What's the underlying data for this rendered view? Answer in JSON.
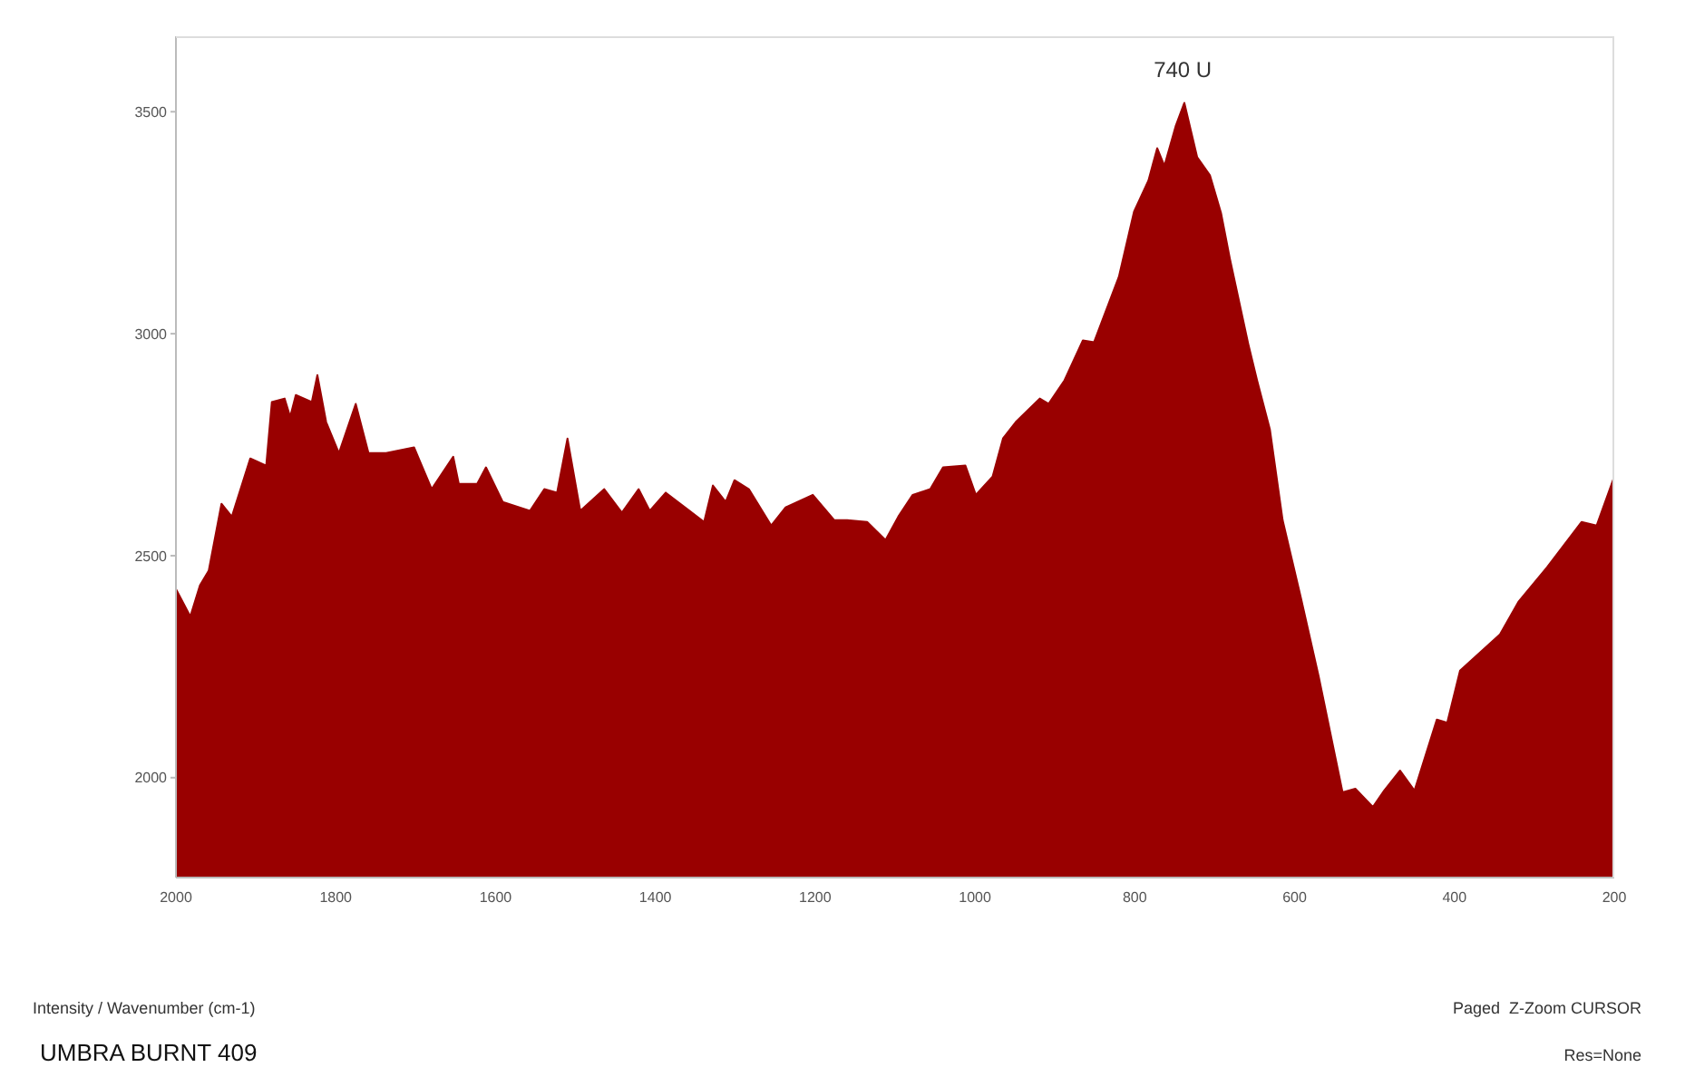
{
  "chart_data": {
    "type": "area",
    "title": "UMBRA BURNT 409",
    "annotations": [
      {
        "text": "740 U",
        "x": 740,
        "y": 3520
      },
      "Intensity / Wavenumber (cm-1)",
      "Paged  Z-Zoom CURSOR",
      "Res=None"
    ],
    "xlim": [
      2000,
      200
    ],
    "xticks": [
      2000,
      1800,
      1600,
      1400,
      1200,
      1000,
      800,
      600,
      400,
      200
    ],
    "ylim": [
      1775,
      3670
    ],
    "yticks": [
      2000,
      2500,
      3000,
      3500
    ],
    "grid": false,
    "legend": false,
    "series": [
      {
        "color": "#990000",
        "x": [
          2000,
          1982,
          1970,
          1959,
          1943,
          1930,
          1907,
          1887,
          1880,
          1864,
          1857,
          1850,
          1830,
          1823,
          1812,
          1796,
          1775,
          1759,
          1737,
          1702,
          1680,
          1653,
          1646,
          1623,
          1612,
          1591,
          1557,
          1539,
          1523,
          1510,
          1494,
          1464,
          1442,
          1421,
          1407,
          1387,
          1339,
          1328,
          1312,
          1301,
          1283,
          1255,
          1237,
          1203,
          1176,
          1160,
          1135,
          1112,
          1096,
          1078,
          1056,
          1040,
          1012,
          999,
          978,
          965,
          949,
          919,
          908,
          888,
          865,
          851,
          820,
          801,
          783,
          772,
          763,
          749,
          738,
          722,
          706,
          692,
          681,
          658,
          647,
          631,
          615,
          592,
          570,
          540,
          524,
          502,
          488,
          468,
          450,
          422,
          409,
          393,
          343,
          320,
          284,
          241,
          222,
          200
        ],
        "values": [
          2425,
          2363,
          2433,
          2466,
          2617,
          2588,
          2719,
          2703,
          2846,
          2854,
          2813,
          2862,
          2846,
          2907,
          2801,
          2731,
          2842,
          2731,
          2731,
          2744,
          2650,
          2723,
          2662,
          2662,
          2699,
          2621,
          2601,
          2650,
          2642,
          2764,
          2601,
          2650,
          2597,
          2650,
          2601,
          2642,
          2576,
          2658,
          2621,
          2670,
          2650,
          2568,
          2609,
          2637,
          2580,
          2580,
          2576,
          2535,
          2588,
          2637,
          2650,
          2699,
          2703,
          2637,
          2678,
          2764,
          2801,
          2854,
          2842,
          2895,
          2985,
          2981,
          3128,
          3275,
          3345,
          3418,
          3378,
          3467,
          3520,
          3398,
          3357,
          3271,
          3169,
          2977,
          2895,
          2785,
          2580,
          2404,
          2229,
          1967,
          1975,
          1934,
          1971,
          2016,
          1971,
          2131,
          2124,
          2241,
          2323,
          2396,
          2474,
          2576,
          2568,
          2678
        ]
      }
    ]
  }
}
